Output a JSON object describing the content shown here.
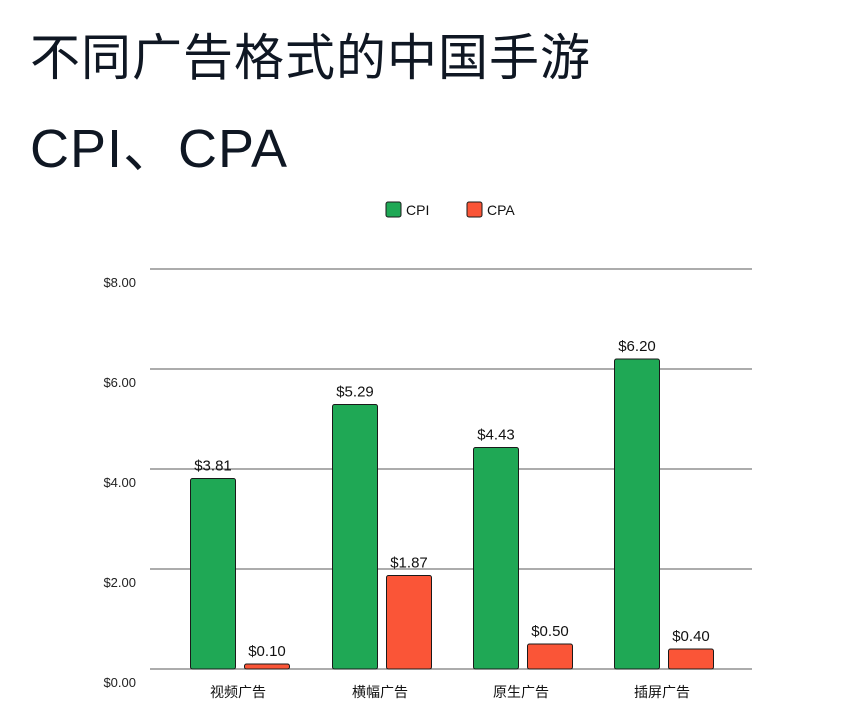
{
  "title_line1": "不同广告格式的中国手游",
  "title_line2": "CPI、CPA",
  "chart_data": {
    "type": "bar",
    "categories": [
      "视频广告",
      "横幅广告",
      "原生广告",
      "插屏广告"
    ],
    "series": [
      {
        "name": "CPI",
        "color": "#1fa855",
        "values": [
          3.81,
          5.29,
          4.43,
          6.2
        ],
        "labels": [
          "$3.81",
          "$5.29",
          "$4.43",
          "$6.20"
        ]
      },
      {
        "name": "CPA",
        "color": "#fa5537",
        "values": [
          0.1,
          1.87,
          0.5,
          0.4
        ],
        "labels": [
          "$0.10",
          "$1.87",
          "$0.50",
          "$0.40"
        ]
      }
    ],
    "yticks": [
      0,
      2,
      4,
      6,
      8
    ],
    "ytick_labels": [
      "$0.00",
      "$2.00",
      "$4.00",
      "$6.00",
      "$8.00"
    ],
    "ylim": [
      0,
      8
    ],
    "grid": true,
    "legend": "top-center"
  }
}
